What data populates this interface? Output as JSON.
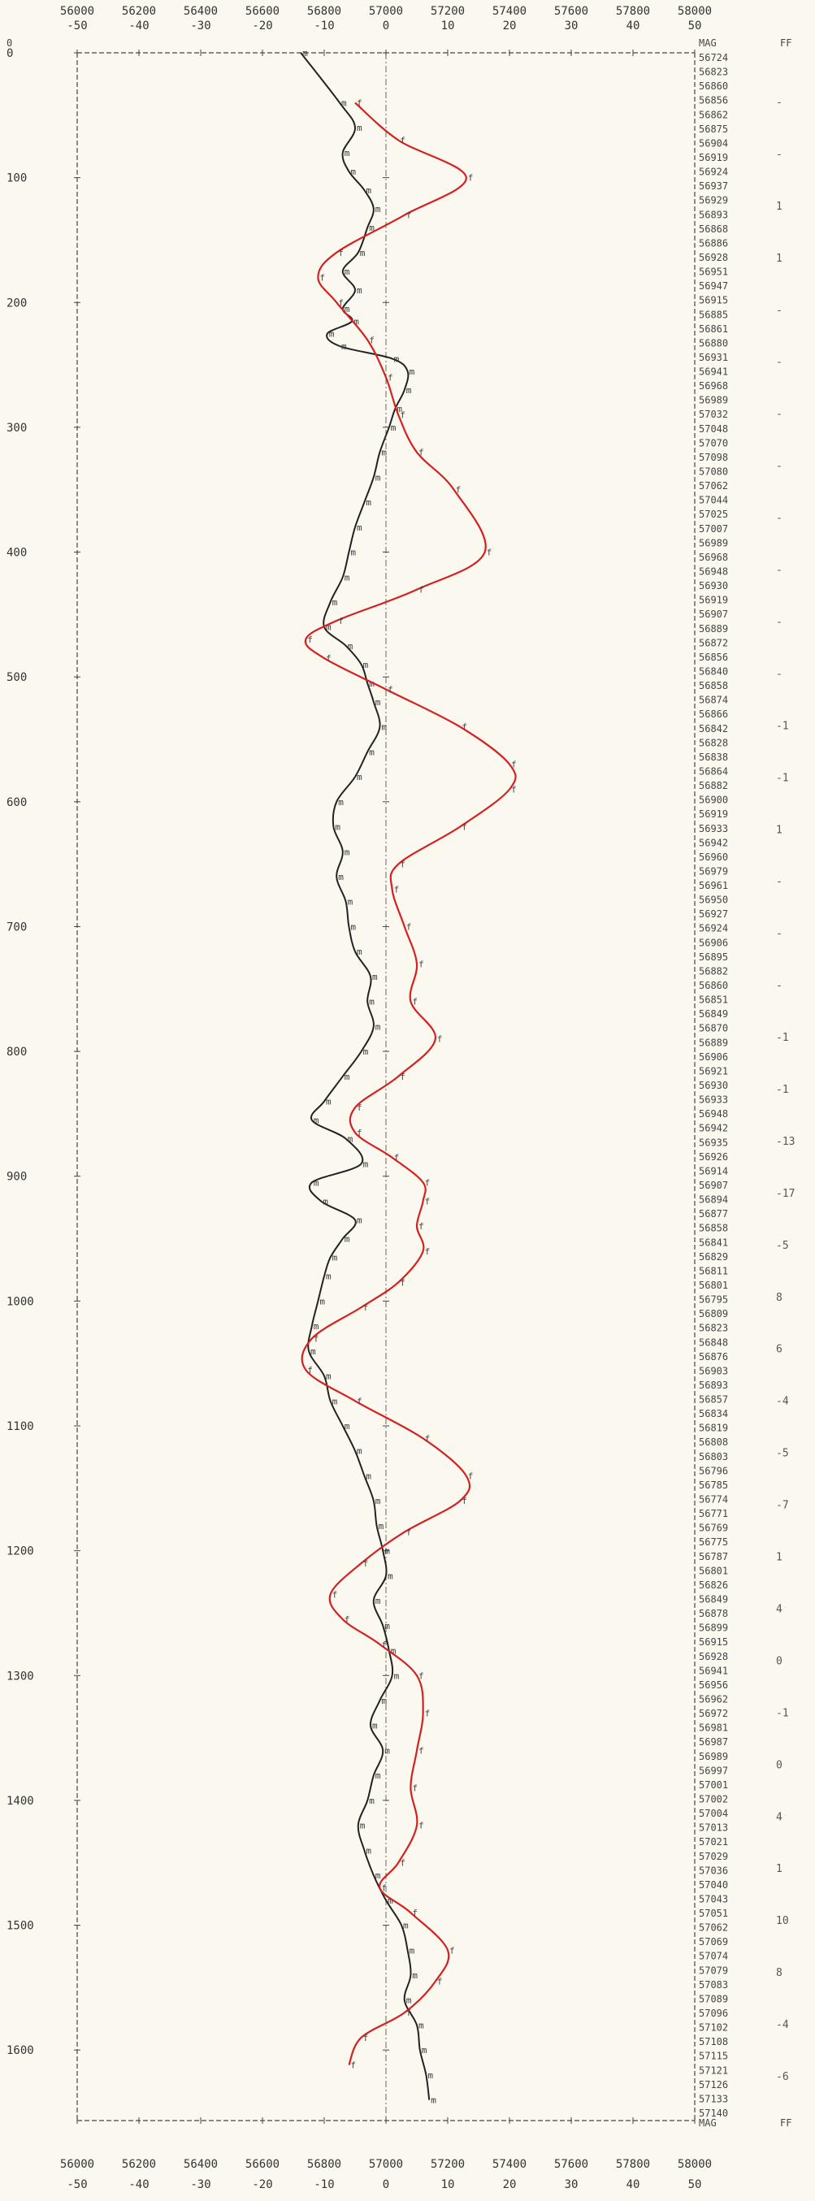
{
  "chart_data": {
    "type": "line",
    "title": "",
    "xlabel": "",
    "ylabel": "",
    "x_primary_ticks": [
      "56000",
      "56200",
      "56400",
      "56600",
      "56800",
      "57000",
      "57200",
      "57400",
      "57600",
      "57800",
      "58000"
    ],
    "x_secondary_ticks": [
      "-50",
      "-40",
      "-30",
      "-20",
      "-10",
      "0",
      "10",
      "20",
      "30",
      "40",
      "50"
    ],
    "x_primary_range": [
      56000,
      58000
    ],
    "x_secondary_range": [
      -50,
      50
    ],
    "y_range": [
      0,
      1650
    ],
    "y_ticks": [
      "0",
      "100",
      "200",
      "300",
      "400",
      "500",
      "600",
      "700",
      "800",
      "900",
      "1000",
      "1100",
      "1200",
      "1300",
      "1400",
      "1500",
      "1600"
    ],
    "header_labels": {
      "top_zero": "0",
      "mag": "MAG",
      "ff": "FF"
    },
    "colors": {
      "mag_line": "#222222",
      "ff_line": "#d42020",
      "frame": "#444444",
      "center_line": "#666666"
    },
    "series": [
      {
        "name": "MAG",
        "axis": "primary",
        "marker": "m",
        "points": [
          [
            0,
            56724
          ],
          [
            40,
            56850
          ],
          [
            60,
            56900
          ],
          [
            80,
            56860
          ],
          [
            95,
            56880
          ],
          [
            110,
            56930
          ],
          [
            125,
            56960
          ],
          [
            140,
            56940
          ],
          [
            160,
            56910
          ],
          [
            175,
            56860
          ],
          [
            190,
            56900
          ],
          [
            205,
            56860
          ],
          [
            215,
            56890
          ],
          [
            225,
            56810
          ],
          [
            235,
            56850
          ],
          [
            245,
            57020
          ],
          [
            255,
            57070
          ],
          [
            270,
            57060
          ],
          [
            285,
            57030
          ],
          [
            300,
            57010
          ],
          [
            320,
            56980
          ],
          [
            340,
            56960
          ],
          [
            360,
            56930
          ],
          [
            380,
            56900
          ],
          [
            400,
            56880
          ],
          [
            420,
            56860
          ],
          [
            440,
            56820
          ],
          [
            460,
            56800
          ],
          [
            475,
            56870
          ],
          [
            490,
            56920
          ],
          [
            505,
            56940
          ],
          [
            520,
            56960
          ],
          [
            540,
            56980
          ],
          [
            560,
            56940
          ],
          [
            580,
            56900
          ],
          [
            600,
            56840
          ],
          [
            620,
            56830
          ],
          [
            640,
            56860
          ],
          [
            660,
            56840
          ],
          [
            680,
            56870
          ],
          [
            700,
            56880
          ],
          [
            720,
            56900
          ],
          [
            740,
            56950
          ],
          [
            760,
            56940
          ],
          [
            780,
            56960
          ],
          [
            800,
            56920
          ],
          [
            820,
            56860
          ],
          [
            840,
            56800
          ],
          [
            855,
            56760
          ],
          [
            870,
            56870
          ],
          [
            890,
            56920
          ],
          [
            905,
            56760
          ],
          [
            920,
            56790
          ],
          [
            935,
            56900
          ],
          [
            950,
            56860
          ],
          [
            965,
            56820
          ],
          [
            980,
            56800
          ],
          [
            1000,
            56780
          ],
          [
            1020,
            56760
          ],
          [
            1040,
            56750
          ],
          [
            1060,
            56800
          ],
          [
            1080,
            56820
          ],
          [
            1100,
            56860
          ],
          [
            1120,
            56900
          ],
          [
            1140,
            56930
          ],
          [
            1160,
            56960
          ],
          [
            1180,
            56970
          ],
          [
            1200,
            56990
          ],
          [
            1220,
            57000
          ],
          [
            1240,
            56960
          ],
          [
            1260,
            56990
          ],
          [
            1280,
            57010
          ],
          [
            1300,
            57020
          ],
          [
            1320,
            56980
          ],
          [
            1340,
            56950
          ],
          [
            1360,
            56990
          ],
          [
            1380,
            56960
          ],
          [
            1400,
            56940
          ],
          [
            1420,
            56910
          ],
          [
            1440,
            56930
          ],
          [
            1460,
            56960
          ],
          [
            1480,
            57000
          ],
          [
            1500,
            57050
          ],
          [
            1520,
            57070
          ],
          [
            1540,
            57080
          ],
          [
            1560,
            57060
          ],
          [
            1580,
            57100
          ],
          [
            1600,
            57110
          ],
          [
            1620,
            57130
          ],
          [
            1640,
            57140
          ]
        ]
      },
      {
        "name": "FF",
        "axis": "secondary",
        "marker": "f",
        "points": [
          [
            40,
            -5
          ],
          [
            70,
            2
          ],
          [
            100,
            13
          ],
          [
            130,
            3
          ],
          [
            160,
            -8
          ],
          [
            180,
            -11
          ],
          [
            200,
            -8
          ],
          [
            230,
            -3
          ],
          [
            260,
            0
          ],
          [
            290,
            2
          ],
          [
            320,
            5
          ],
          [
            350,
            11
          ],
          [
            400,
            16
          ],
          [
            430,
            5
          ],
          [
            455,
            -8
          ],
          [
            470,
            -13
          ],
          [
            485,
            -10
          ],
          [
            510,
            0
          ],
          [
            540,
            12
          ],
          [
            570,
            20
          ],
          [
            590,
            20
          ],
          [
            620,
            12
          ],
          [
            650,
            2
          ],
          [
            670,
            1
          ],
          [
            700,
            3
          ],
          [
            730,
            5
          ],
          [
            760,
            4
          ],
          [
            790,
            8
          ],
          [
            820,
            2
          ],
          [
            845,
            -5
          ],
          [
            865,
            -5
          ],
          [
            885,
            1
          ],
          [
            905,
            6
          ],
          [
            920,
            6
          ],
          [
            940,
            5
          ],
          [
            960,
            6
          ],
          [
            985,
            2
          ],
          [
            1005,
            -4
          ],
          [
            1030,
            -12
          ],
          [
            1055,
            -13
          ],
          [
            1080,
            -5
          ],
          [
            1110,
            6
          ],
          [
            1140,
            13
          ],
          [
            1160,
            12
          ],
          [
            1185,
            3
          ],
          [
            1210,
            -4
          ],
          [
            1235,
            -9
          ],
          [
            1255,
            -7
          ],
          [
            1275,
            -1
          ],
          [
            1300,
            5
          ],
          [
            1330,
            6
          ],
          [
            1360,
            5
          ],
          [
            1390,
            4
          ],
          [
            1420,
            5
          ],
          [
            1450,
            2
          ],
          [
            1470,
            -1
          ],
          [
            1490,
            4
          ],
          [
            1520,
            10
          ],
          [
            1545,
            8
          ],
          [
            1570,
            3
          ],
          [
            1590,
            -4
          ],
          [
            1612,
            -6
          ]
        ]
      }
    ],
    "depth_column": [
      "56724",
      "56823",
      "56860",
      "56856",
      "56862",
      "56875",
      "56904",
      "56919",
      "56924",
      "56937",
      "56929",
      "56893",
      "56868",
      "56886",
      "56928",
      "56951",
      "56947",
      "56915",
      "56885",
      "56861",
      "56880",
      "56931",
      "56941",
      "56968",
      "56989",
      "57032",
      "57048",
      "57070",
      "57098",
      "57080",
      "57062",
      "57044",
      "57025",
      "57007",
      "56989",
      "56968",
      "56948",
      "56930",
      "56919",
      "56907",
      "56889",
      "56872",
      "56856",
      "56840",
      "56858",
      "56874",
      "56866",
      "56842",
      "56828",
      "56838",
      "56864",
      "56882",
      "56900",
      "56919",
      "56933",
      "56942",
      "56960",
      "56979",
      "56961",
      "56950",
      "56927",
      "56924",
      "56906",
      "56895",
      "56882",
      "56860",
      "56851",
      "56849",
      "56870",
      "56889",
      "56906",
      "56921",
      "56930",
      "56933",
      "56948",
      "56942",
      "56935",
      "56926",
      "56914",
      "56907",
      "56894",
      "56877",
      "56858",
      "56841",
      "56829",
      "56811",
      "56801",
      "56795",
      "56809",
      "56823",
      "56848",
      "56876",
      "56903",
      "56893",
      "56857",
      "56834",
      "56819",
      "56808",
      "56803",
      "56796",
      "56785",
      "56774",
      "56771",
      "56769",
      "56775",
      "56787",
      "56801",
      "56826",
      "56849",
      "56878",
      "56899",
      "56915",
      "56928",
      "56941",
      "56956",
      "56962",
      "56972",
      "56981",
      "56987",
      "56989",
      "56997",
      "57001",
      "57002",
      "57004",
      "57013",
      "57021",
      "57029",
      "57036",
      "57040",
      "57043",
      "57051",
      "57062",
      "57069",
      "57074",
      "57079",
      "57083",
      "57089",
      "57096",
      "57102",
      "57108",
      "57115",
      "57121",
      "57126",
      "57133",
      "57140"
    ],
    "ff_column": [
      "-",
      "-",
      "1",
      "1",
      "-",
      "-",
      "-",
      "-",
      "-",
      "-",
      "-",
      "-",
      "-1",
      "-1",
      "1",
      "-",
      "-",
      "-",
      "-1",
      "-1",
      "-13",
      "-17",
      "-5",
      "8",
      "6",
      "-4",
      "-5",
      "-7",
      "1",
      "4",
      "0",
      "-1",
      "0",
      "4",
      "1",
      "10",
      "8",
      "-4",
      "-6"
    ]
  }
}
